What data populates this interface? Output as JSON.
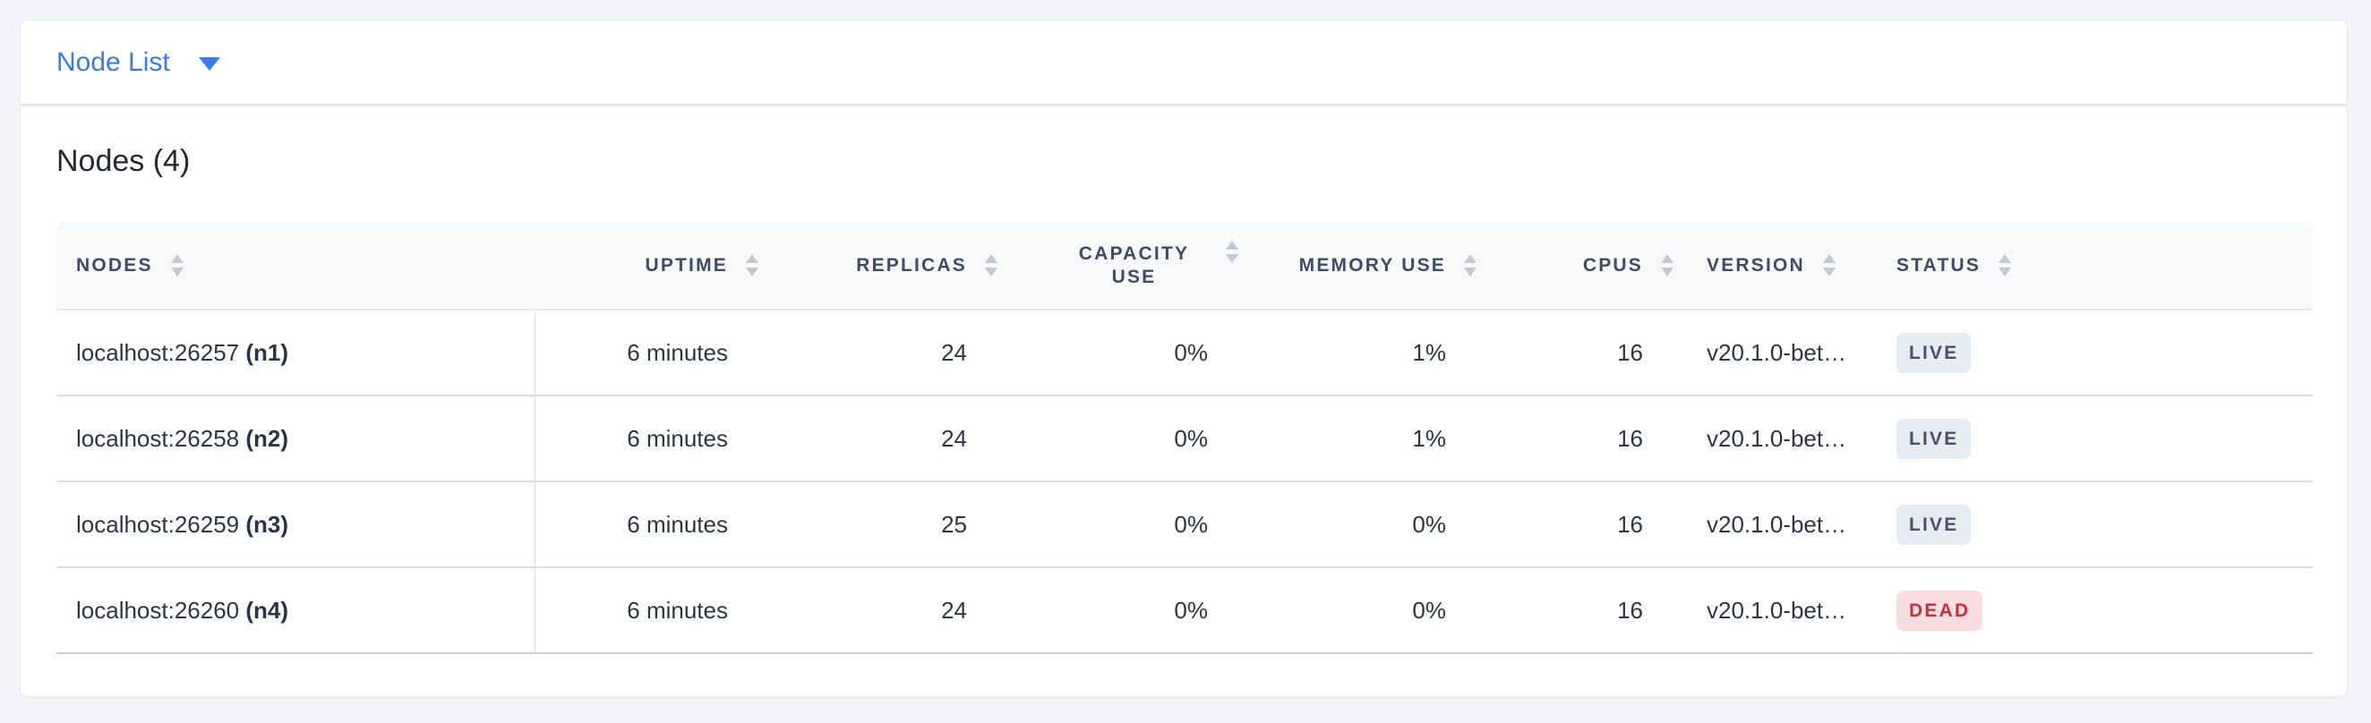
{
  "colors": {
    "accent": "#3b7ce2",
    "page_background": "#f4f5fa",
    "header_row_background": "#f7f8fa",
    "header_text": "#3f4c67",
    "body_text": "#2c3548"
  },
  "topbar": {
    "dropdown_label": "Node List",
    "dropdown_icon": "chevron-down-icon"
  },
  "panel": {
    "title": "Nodes (4)"
  },
  "table": {
    "columns": [
      {
        "key": "nodes",
        "label": "NODES",
        "align": "left",
        "sortable": true,
        "sort_icon": "sort-arrows-icon"
      },
      {
        "key": "uptime",
        "label": "UPTIME",
        "align": "right",
        "sortable": true,
        "sort_icon": "sort-arrows-icon"
      },
      {
        "key": "replicas",
        "label": "REPLICAS",
        "align": "right",
        "sortable": true,
        "sort_icon": "sort-arrows-icon"
      },
      {
        "key": "capacity_use",
        "label": "CAPACITY USE",
        "align": "right",
        "sortable": true,
        "sort_icon": "sort-arrows-icon"
      },
      {
        "key": "memory_use",
        "label": "MEMORY USE",
        "align": "right",
        "sortable": true,
        "sort_icon": "sort-arrows-icon"
      },
      {
        "key": "cpus",
        "label": "CPUS",
        "align": "right",
        "sortable": true,
        "sort_icon": "sort-arrows-icon"
      },
      {
        "key": "version",
        "label": "VERSION",
        "align": "left",
        "sortable": true,
        "sort_icon": "sort-arrows-icon"
      },
      {
        "key": "status",
        "label": "STATUS",
        "align": "left",
        "sortable": true,
        "sort_icon": "sort-arrows-icon"
      }
    ],
    "rows": [
      {
        "address": "localhost:26257",
        "id": "(n1)",
        "uptime": "6 minutes",
        "replicas": "24",
        "capacity_use": "0%",
        "memory_use": "1%",
        "cpus": "16",
        "version": "v20.1.0-bet…",
        "status": "LIVE"
      },
      {
        "address": "localhost:26258",
        "id": "(n2)",
        "uptime": "6 minutes",
        "replicas": "24",
        "capacity_use": "0%",
        "memory_use": "1%",
        "cpus": "16",
        "version": "v20.1.0-bet…",
        "status": "LIVE"
      },
      {
        "address": "localhost:26259",
        "id": "(n3)",
        "uptime": "6 minutes",
        "replicas": "25",
        "capacity_use": "0%",
        "memory_use": "0%",
        "cpus": "16",
        "version": "v20.1.0-bet…",
        "status": "LIVE"
      },
      {
        "address": "localhost:26260",
        "id": "(n4)",
        "uptime": "6 minutes",
        "replicas": "24",
        "capacity_use": "0%",
        "memory_use": "0%",
        "cpus": "16",
        "version": "v20.1.0-bet…",
        "status": "DEAD"
      }
    ],
    "status_styles": {
      "LIVE": {
        "background": "#e8ebf1",
        "color": "#46536e"
      },
      "DEAD": {
        "background": "#f9dde0",
        "color": "#c0343c"
      }
    }
  }
}
